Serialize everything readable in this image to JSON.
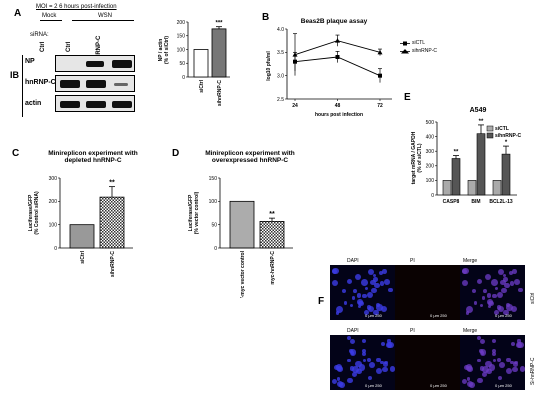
{
  "panels": {
    "A": {
      "label": "A",
      "moi_text": "MOI = 2 6 hours post-infection",
      "mock": "Mock",
      "wsn": "WSN",
      "sirna": "siRNA:",
      "lanes": [
        "Ctrl",
        "Ctrl",
        "hnRNP-C"
      ],
      "ib": "IB",
      "rows": [
        "NP",
        "hnRNP-C",
        "actin"
      ],
      "bar": {
        "ylabel": "NP / actin\n(% of siCtrl)",
        "yticks": [
          "0",
          "50",
          "100",
          "150",
          "200"
        ],
        "categories": [
          "siCtrl",
          "sihnRNP-C"
        ],
        "values": [
          100,
          175
        ],
        "sig": "***"
      }
    },
    "B": {
      "label": "B",
      "title": "Beas2B plaque assay",
      "ylabel": "log10 pfu/ml",
      "xlabel": "hours post infection",
      "xticks": [
        "24",
        "48",
        "72"
      ],
      "yticks": [
        "2.5",
        "3.0",
        "3.5",
        "4.0"
      ],
      "legend": [
        "siCTL",
        "sihnRNP-C"
      ]
    },
    "C": {
      "label": "C",
      "title": "Minireplicon experiment with\ndepleted hnRNP-C",
      "ylabel": "Luciferase/GFP\n(% Control siRNA)",
      "yticks": [
        "0",
        "100",
        "200",
        "300"
      ],
      "categories": [
        "siCtrl",
        "sihnRNP-C"
      ],
      "sig": "**"
    },
    "D": {
      "label": "D",
      "title": "Minireplicon experiment with\noverexpressed hnRNP-C",
      "ylabel": "Luciferase/GFP\n(% vector control)",
      "yticks": [
        "0",
        "50",
        "100",
        "150"
      ],
      "categories": [
        "pCMV-myc vector control",
        "myc-hnRNP-C"
      ],
      "sig": "**"
    },
    "E": {
      "label": "E",
      "title": "A549",
      "ylabel": "target mRNA / GAPDH\n(% of siCTL)",
      "yticks": [
        "0",
        "100",
        "200",
        "300",
        "400",
        "500"
      ],
      "categories": [
        "CASP8",
        "BIM",
        "BCL2L-13"
      ],
      "legend": [
        "siCTL",
        "sihnRNP-C"
      ],
      "sigs": [
        "**",
        "**",
        "*"
      ]
    },
    "F": {
      "label": "F",
      "cols": [
        "DAPI",
        "PI",
        "Merge"
      ],
      "rows": [
        "siCtrl",
        "Si-hnRNP-C"
      ],
      "scale": [
        "0",
        "μm",
        "250"
      ]
    }
  },
  "chart_data": [
    {
      "type": "bar",
      "panel": "A",
      "categories": [
        "siCtrl",
        "sihnRNP-C"
      ],
      "values": [
        100,
        175
      ],
      "errors": [
        0,
        8
      ],
      "ylabel": "NP / actin (% of siCtrl)",
      "ylim": [
        0,
        200
      ]
    },
    {
      "type": "line",
      "panel": "B",
      "title": "Beas2B plaque assay",
      "xlabel": "hours post infection",
      "ylabel": "log10 pfu/ml",
      "x": [
        24,
        48,
        72
      ],
      "ylim": [
        2.5,
        4.0
      ],
      "series": [
        {
          "name": "siCTL",
          "values": [
            3.3,
            3.4,
            3.0
          ],
          "errors": [
            0.2,
            0.12,
            0.15
          ]
        },
        {
          "name": "sihnRNP-C",
          "values": [
            3.45,
            3.75,
            3.5
          ],
          "errors": [
            0.45,
            0.12,
            0.07
          ]
        }
      ]
    },
    {
      "type": "bar",
      "panel": "C",
      "title": "Minireplicon experiment with depleted hnRNP-C",
      "categories": [
        "siCtrl",
        "sihnRNP-C"
      ],
      "values": [
        100,
        218
      ],
      "errors": [
        0,
        45
      ],
      "ylabel": "Luciferase/GFP (% Control siRNA)",
      "ylim": [
        0,
        300
      ]
    },
    {
      "type": "bar",
      "panel": "D",
      "title": "Minireplicon experiment with overexpressed hnRNP-C",
      "categories": [
        "pCMV-myc vector control",
        "myc-hnRNP-C"
      ],
      "values": [
        100,
        57
      ],
      "errors": [
        0,
        7
      ],
      "ylabel": "Luciferase/GFP (% vector control)",
      "ylim": [
        0,
        150
      ]
    },
    {
      "type": "bar",
      "panel": "E",
      "title": "A549",
      "categories": [
        "CASP8",
        "BIM",
        "BCL2L-13"
      ],
      "ylabel": "target mRNA / GAPDH (% of siCTL)",
      "ylim": [
        0,
        500
      ],
      "series": [
        {
          "name": "siCTL",
          "values": [
            100,
            100,
            100
          ],
          "errors": [
            0,
            0,
            0
          ]
        },
        {
          "name": "sihnRNP-C",
          "values": [
            250,
            420,
            280
          ],
          "errors": [
            20,
            60,
            55
          ]
        }
      ]
    }
  ]
}
